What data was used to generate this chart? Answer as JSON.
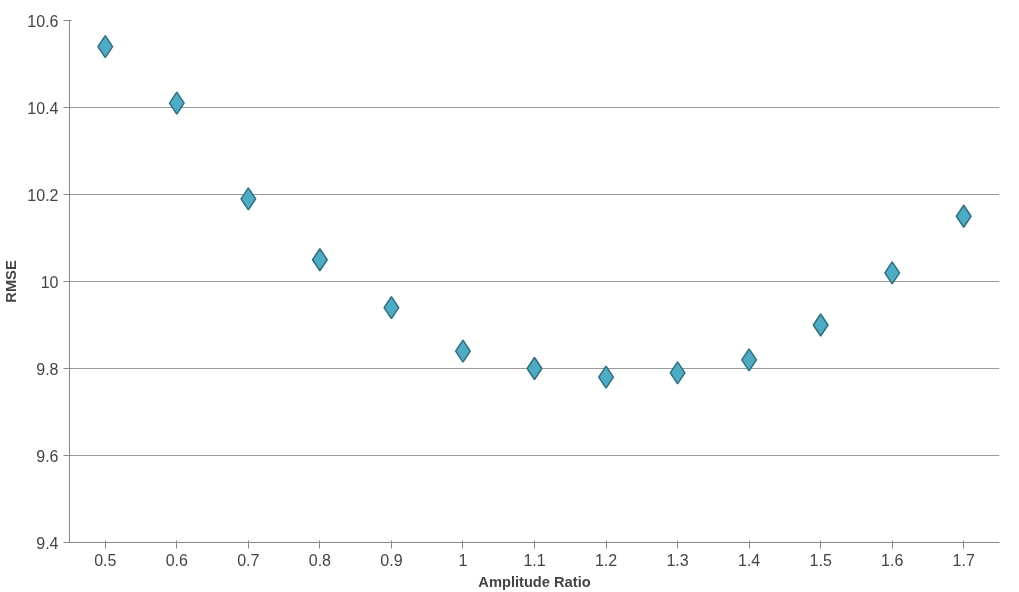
{
  "chart_data": {
    "type": "scatter",
    "xlabel": "Amplitude Ratio",
    "ylabel": "RMSE",
    "categories": [
      "0.5",
      "0.6",
      "0.7",
      "0.8",
      "0.9",
      "1",
      "1.1",
      "1.2",
      "1.3",
      "1.4",
      "1.5",
      "1.6",
      "1.7"
    ],
    "series": [
      {
        "color": "#4bacc6",
        "values": [
          10.54,
          10.41,
          10.19,
          10.05,
          9.94,
          9.84,
          9.8,
          9.78,
          9.79,
          9.82,
          9.9,
          10.02,
          10.15
        ]
      }
    ],
    "ylim": [
      9.4,
      10.6
    ],
    "yticks": [
      9.4,
      9.6,
      9.8,
      10,
      10.2,
      10.4,
      10.6
    ],
    "grid": "y",
    "marker": "diamond"
  }
}
